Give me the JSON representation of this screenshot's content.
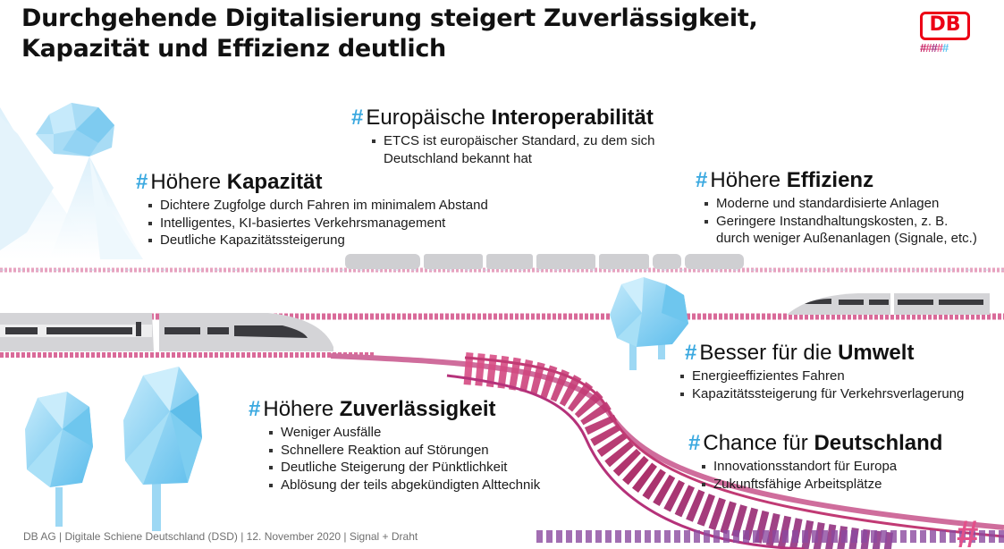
{
  "slide": {
    "title_line1": "Durchgehende Digitalisierung steigert Zuverlässigkeit,",
    "title_line2": "Kapazität und Effizienz deutlich"
  },
  "logo": {
    "text": "DB",
    "hash_chars": [
      "#",
      "#",
      "#",
      "#",
      "#"
    ]
  },
  "blocks": {
    "interoperabilitaet": {
      "prefix": "Europäische ",
      "bold": "Interoperabilität",
      "items": [
        "ETCS ist europäischer Standard, zu dem sich",
        "Deutschland bekannt hat"
      ]
    },
    "kapazitaet": {
      "prefix": "Höhere ",
      "bold": "Kapazität",
      "items": [
        "Dichtere Zugfolge durch Fahren im minimalem Abstand",
        "Intelligentes, KI-basiertes Verkehrsmanagement",
        "Deutliche Kapazitätssteigerung"
      ]
    },
    "effizienz": {
      "prefix": "Höhere ",
      "bold": "Effizienz",
      "items": [
        "Moderne und standardisierte Anlagen",
        "Geringere Instandhaltungskosten, z. B.",
        "durch weniger Außenanlagen (Signale, etc.)"
      ]
    },
    "umwelt": {
      "prefix": "Besser für die ",
      "bold": "Umwelt",
      "items": [
        "Energieeffizientes Fahren",
        "Kapazitätssteigerung für Verkehrsverlagerung"
      ]
    },
    "zuverlaessigkeit": {
      "prefix": "Höhere ",
      "bold": "Zuverlässigkeit",
      "items": [
        "Weniger Ausfälle",
        "Schnellere Reaktion auf Störungen",
        "Deutliche Steigerung der Pünktlichkeit",
        "Ablösung der teils abgekündigten Alttechnik"
      ]
    },
    "deutschland": {
      "prefix": "Chance für ",
      "bold": "Deutschland",
      "items": [
        "Innovationsstandort für Europa",
        "Zukunftsfähige Arbeitsplätze"
      ]
    }
  },
  "hash_symbol": "#",
  "footer": "DB AG | Digitale Schiene Deutschland (DSD) | 12. November 2020 | Signal + Draht",
  "colors": {
    "accent_hash": "#3ba9e0",
    "db_red": "#ec0016",
    "track_pink": "#d13f7a",
    "track_magenta": "#a01c5c",
    "track_purple": "#8a3a8c",
    "track_blue": "#5bc4f1",
    "tree_blue": "#8fd3f3",
    "train_grey": "#c9c9cc"
  }
}
